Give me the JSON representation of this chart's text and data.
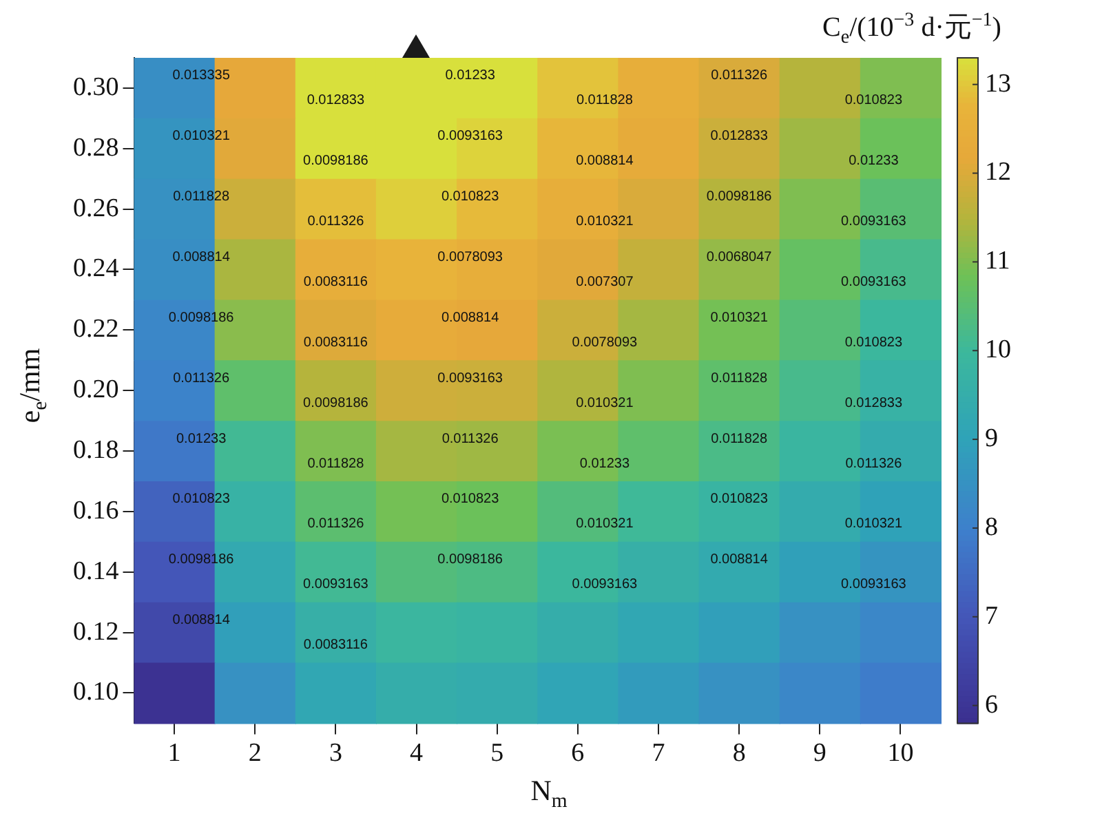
{
  "chart_data": {
    "type": "heatmap",
    "xlabel": "N$_{m}$",
    "ylabel": "e$_{e}$/mm",
    "clabel": "C$_{e}$/(10$^{−3}$ d·元$^{−1}$)",
    "categories": [
      "1",
      "2",
      "3",
      "4",
      "5",
      "6",
      "7",
      "8",
      "9",
      "10"
    ],
    "y_categories": [
      "0.30",
      "0.28",
      "0.26",
      "0.24",
      "0.22",
      "0.20",
      "0.18",
      "0.16",
      "0.14",
      "0.12",
      "0.10"
    ],
    "cells": [
      [
        8.4,
        12.2,
        13.45,
        13.55,
        13.3,
        12.95,
        12.5,
        12.0,
        11.5,
        11.0
      ],
      [
        8.6,
        12.1,
        13.3,
        13.4,
        13.15,
        12.8,
        12.3,
        11.8,
        11.3,
        10.8
      ],
      [
        8.5,
        11.8,
        12.9,
        13.1,
        12.85,
        12.5,
        12.0,
        11.5,
        11.0,
        10.5
      ],
      [
        8.4,
        11.4,
        12.5,
        12.75,
        12.5,
        12.1,
        11.7,
        11.2,
        10.7,
        10.2
      ],
      [
        8.2,
        11.1,
        12.05,
        12.35,
        12.2,
        11.8,
        11.35,
        10.9,
        10.45,
        9.95
      ],
      [
        8.1,
        10.6,
        11.5,
        11.85,
        11.8,
        11.45,
        11.0,
        10.6,
        10.2,
        9.7
      ],
      [
        7.8,
        10.1,
        11.0,
        11.35,
        11.3,
        10.95,
        10.6,
        10.25,
        9.85,
        9.4
      ],
      [
        7.3,
        9.7,
        10.55,
        10.9,
        10.8,
        10.4,
        10.05,
        9.8,
        9.4,
        9.0
      ],
      [
        7.0,
        9.3,
        10.1,
        10.4,
        10.3,
        9.95,
        9.6,
        9.35,
        8.95,
        8.6
      ],
      [
        6.6,
        8.9,
        9.6,
        9.9,
        9.8,
        9.5,
        9.2,
        8.9,
        8.5,
        8.2
      ],
      [
        5.9,
        8.5,
        9.2,
        9.5,
        9.4,
        9.1,
        8.8,
        8.5,
        8.2,
        7.9
      ]
    ],
    "clim": [
      5.8,
      13.3
    ],
    "cticks": [
      6,
      7,
      8,
      9,
      10,
      11,
      12,
      13
    ],
    "annotations": [
      "0.013335",
      "0.012833",
      "0.01233",
      "0.011828",
      "0.011326",
      "0.010823",
      "0.010321",
      "0.0098186",
      "0.0093163",
      "0.008814",
      "0.012833",
      "0.01233",
      "0.011828",
      "0.011326",
      "0.010823",
      "0.010321",
      "0.0098186",
      "0.0093163",
      "0.008814",
      "0.0083116",
      "0.0078093",
      "0.007307",
      "0.0068047",
      "0.0093163",
      "0.0098186",
      "0.0083116",
      "0.008814",
      "0.0078093",
      "0.010321",
      "0.010823",
      "0.011326",
      "0.0098186",
      "0.0093163",
      "0.010321",
      "0.011828",
      "0.012833",
      "0.01233",
      "0.011828",
      "0.011326",
      "0.01233",
      "0.011828",
      "0.011326",
      "0.010823",
      "0.011326",
      "0.010823",
      "0.010321",
      "0.010823",
      "0.010321",
      "0.0098186",
      "0.0093163",
      "0.0098186",
      "0.0093163",
      "0.008814",
      "0.0093163",
      "0.008814",
      "0.0083116"
    ]
  }
}
